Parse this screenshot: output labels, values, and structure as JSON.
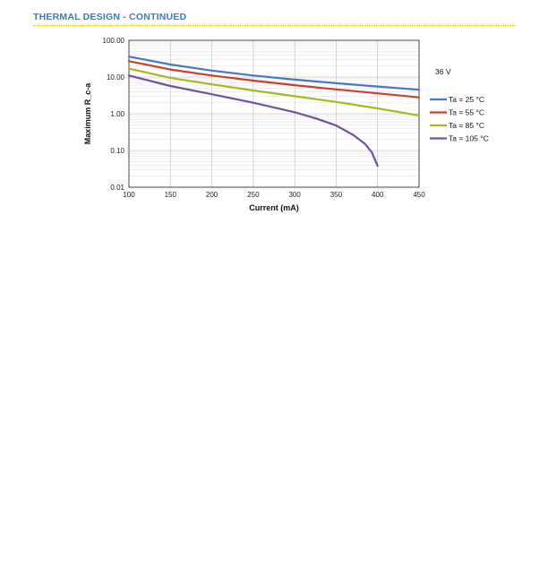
{
  "header": {
    "title": "THERMAL DESIGN - CONTINUED"
  },
  "colors": {
    "accent": "#3b7bbf",
    "rule": "#e8c21e"
  },
  "chart_data": {
    "type": "line",
    "xlabel": "Current (mA)",
    "ylabel": "Maximum R_c-a",
    "annotation": "36 V",
    "y_scale": "log",
    "xlim": [
      100,
      450
    ],
    "ylim": [
      0.01,
      100
    ],
    "x_ticks": [
      "100",
      "150",
      "200",
      "250",
      "300",
      "350",
      "400",
      "450"
    ],
    "y_ticks": [
      "100.00",
      "10.00",
      "1.00",
      "0.10",
      "0.01"
    ],
    "grid": true,
    "legend_position": "right",
    "series": [
      {
        "name": "Ta = 25 °C",
        "color": "#4a78c0",
        "x": [
          100,
          150,
          200,
          250,
          300,
          350,
          400,
          450
        ],
        "y": [
          36,
          22,
          15,
          11,
          8.5,
          6.8,
          5.5,
          4.5
        ]
      },
      {
        "name": "Ta = 55 °C",
        "color": "#c8402f",
        "x": [
          100,
          150,
          200,
          250,
          300,
          350,
          400,
          450
        ],
        "y": [
          27,
          16,
          11,
          8,
          6,
          4.6,
          3.6,
          2.8
        ]
      },
      {
        "name": "Ta = 85 °C",
        "color": "#a9b820",
        "x": [
          100,
          150,
          200,
          250,
          300,
          350,
          400,
          450
        ],
        "y": [
          17,
          9.5,
          6.3,
          4.3,
          3,
          2.1,
          1.4,
          0.9
        ]
      },
      {
        "name": "Ta = 105 °C",
        "color": "#7052a0",
        "x": [
          100,
          150,
          200,
          250,
          300,
          325,
          350,
          370,
          385,
          393,
          400
        ],
        "y": [
          11,
          5.7,
          3.4,
          2,
          1.1,
          0.75,
          0.48,
          0.27,
          0.15,
          0.09,
          0.038
        ]
      }
    ]
  }
}
